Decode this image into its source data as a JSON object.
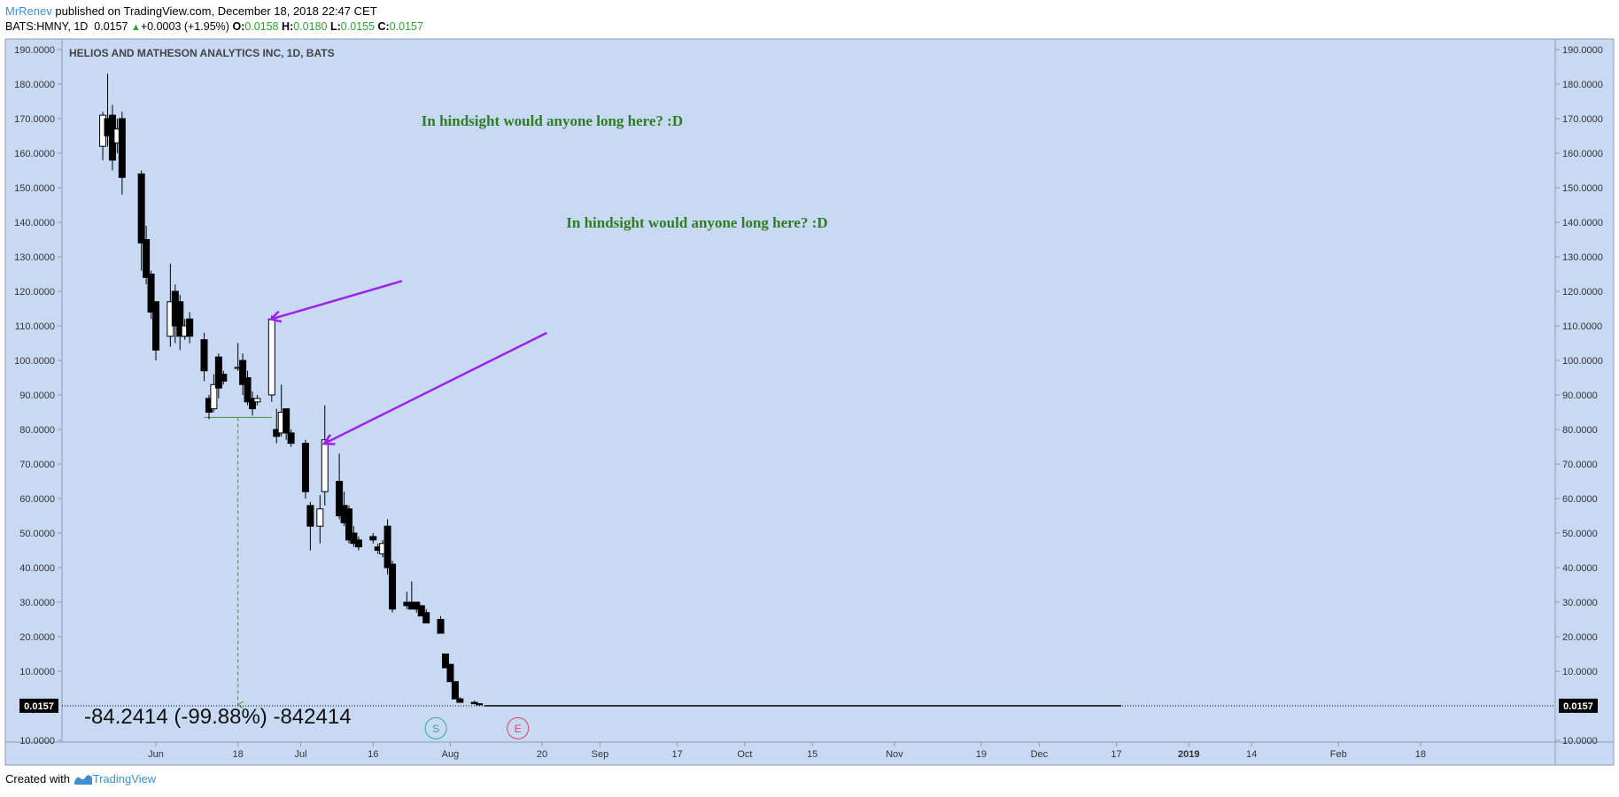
{
  "header": {
    "author": "MrRenev",
    "published": "published on TradingView.com, December 18, 2018 22:47 CET",
    "symbol": "BATS:HMNY, 1D",
    "last": "0.0157",
    "change_arrow": "▲",
    "change": "+0.0003 (+1.95%)",
    "o_label": "O:",
    "o_value": "0.0158",
    "h_label": "H:",
    "h_value": "0.0180",
    "l_label": "L:",
    "l_value": "0.0155",
    "c_label": "C:",
    "c_value": "0.0157"
  },
  "footer": {
    "created_with": "Created with",
    "brand": "TradingView"
  },
  "colors": {
    "plot_bg": "#c8d9f4",
    "up_body": "#ffffff",
    "down_body": "#000000",
    "arrow": "#a020f0",
    "annotation_text": "#2e7d22",
    "accent_green": "#2da335",
    "accent_blue": "#3d8fd1"
  },
  "chart_data": {
    "type": "candlestick",
    "title": "HELIOS AND MATHESON ANALYTICS INC, 1D, BATS",
    "y_ticks": [
      "190.0000",
      "180.0000",
      "170.0000",
      "160.0000",
      "150.0000",
      "140.0000",
      "130.0000",
      "120.0000",
      "110.0000",
      "100.0000",
      "90.0000",
      "80.0000",
      "70.0000",
      "60.0000",
      "50.0000",
      "40.0000",
      "30.0000",
      "20.0000",
      "10.0000",
      "10.0000"
    ],
    "ylim": [
      -10,
      192
    ],
    "x_tick_labels": [
      "Jun",
      "18",
      "Jul",
      "16",
      "Aug",
      "20",
      "Sep",
      "17",
      "Oct",
      "15",
      "Nov",
      "19",
      "Dec",
      "17",
      "2019",
      "14",
      "Feb",
      "18"
    ],
    "x_tick_dates": [
      "2018-06-01",
      "2018-06-18",
      "2018-07-01",
      "2018-07-16",
      "2018-08-01",
      "2018-08-20",
      "2018-09-01",
      "2018-09-17",
      "2018-10-01",
      "2018-10-15",
      "2018-11-01",
      "2018-11-19",
      "2018-12-01",
      "2018-12-17",
      "2019-01-01",
      "2019-01-14",
      "2019-02-01",
      "2019-02-18"
    ],
    "bold_ticks": [
      "2019"
    ],
    "last_price_label": "0.0157",
    "ohlc": [
      {
        "d": "2018-05-21",
        "o": 162,
        "h": 172,
        "l": 158,
        "c": 171
      },
      {
        "d": "2018-05-22",
        "o": 170,
        "h": 183,
        "l": 162,
        "c": 165
      },
      {
        "d": "2018-05-23",
        "o": 171,
        "h": 174,
        "l": 155,
        "c": 158
      },
      {
        "d": "2018-05-24",
        "o": 163,
        "h": 170,
        "l": 160,
        "c": 167
      },
      {
        "d": "2018-05-25",
        "o": 170,
        "h": 172,
        "l": 148,
        "c": 153
      },
      {
        "d": "2018-05-29",
        "o": 154,
        "h": 155,
        "l": 126,
        "c": 134
      },
      {
        "d": "2018-05-30",
        "o": 135,
        "h": 139,
        "l": 122,
        "c": 124
      },
      {
        "d": "2018-05-31",
        "o": 125,
        "h": 126,
        "l": 112,
        "c": 114
      },
      {
        "d": "2018-06-01",
        "o": 117,
        "h": 117,
        "l": 100,
        "c": 103
      },
      {
        "d": "2018-06-04",
        "o": 107,
        "h": 128,
        "l": 104,
        "c": 117
      },
      {
        "d": "2018-06-05",
        "o": 120,
        "h": 122,
        "l": 105,
        "c": 110
      },
      {
        "d": "2018-06-06",
        "o": 117,
        "h": 119,
        "l": 103,
        "c": 107
      },
      {
        "d": "2018-06-07",
        "o": 107,
        "h": 112,
        "l": 106,
        "c": 110
      },
      {
        "d": "2018-06-08",
        "o": 112,
        "h": 114,
        "l": 105,
        "c": 107
      },
      {
        "d": "2018-06-11",
        "o": 106,
        "h": 108,
        "l": 94,
        "c": 97
      },
      {
        "d": "2018-06-12",
        "o": 89,
        "h": 90,
        "l": 83,
        "c": 85
      },
      {
        "d": "2018-06-13",
        "o": 86,
        "h": 96,
        "l": 85,
        "c": 93
      },
      {
        "d": "2018-06-14",
        "o": 101,
        "h": 102,
        "l": 89,
        "c": 92
      },
      {
        "d": "2018-06-15",
        "o": 96,
        "h": 97,
        "l": 93,
        "c": 94
      },
      {
        "d": "2018-06-18",
        "o": 98,
        "h": 105,
        "l": 97,
        "c": 98
      },
      {
        "d": "2018-06-19",
        "o": 100,
        "h": 102,
        "l": 90,
        "c": 93
      },
      {
        "d": "2018-06-20",
        "o": 95,
        "h": 97,
        "l": 87,
        "c": 88
      },
      {
        "d": "2018-06-21",
        "o": 89,
        "h": 91,
        "l": 84,
        "c": 86
      },
      {
        "d": "2018-06-22",
        "o": 88,
        "h": 90,
        "l": 87,
        "c": 89
      },
      {
        "d": "2018-06-25",
        "o": 90,
        "h": 113,
        "l": 88,
        "c": 112
      },
      {
        "d": "2018-06-26",
        "o": 80,
        "h": 86,
        "l": 76,
        "c": 78
      },
      {
        "d": "2018-06-27",
        "o": 79,
        "h": 93,
        "l": 78,
        "c": 85
      },
      {
        "d": "2018-06-28",
        "o": 86,
        "h": 86,
        "l": 77,
        "c": 79
      },
      {
        "d": "2018-06-29",
        "o": 79,
        "h": 80,
        "l": 75,
        "c": 76
      },
      {
        "d": "2018-07-02",
        "o": 76,
        "h": 77,
        "l": 60,
        "c": 62
      },
      {
        "d": "2018-07-03",
        "o": 58,
        "h": 59,
        "l": 45,
        "c": 52
      },
      {
        "d": "2018-07-05",
        "o": 52,
        "h": 61,
        "l": 47,
        "c": 57
      },
      {
        "d": "2018-07-06",
        "o": 62,
        "h": 87,
        "l": 58,
        "c": 77
      },
      {
        "d": "2018-07-09",
        "o": 65,
        "h": 73,
        "l": 54,
        "c": 55
      },
      {
        "d": "2018-07-10",
        "o": 58,
        "h": 62,
        "l": 52,
        "c": 53
      },
      {
        "d": "2018-07-11",
        "o": 57,
        "h": 58,
        "l": 47,
        "c": 48
      },
      {
        "d": "2018-07-12",
        "o": 50,
        "h": 52,
        "l": 46,
        "c": 47
      },
      {
        "d": "2018-07-13",
        "o": 48,
        "h": 49,
        "l": 45,
        "c": 46
      },
      {
        "d": "2018-07-16",
        "o": 49,
        "h": 50,
        "l": 47,
        "c": 48
      },
      {
        "d": "2018-07-17",
        "o": 46,
        "h": 47,
        "l": 44,
        "c": 45
      },
      {
        "d": "2018-07-18",
        "o": 44,
        "h": 48,
        "l": 43,
        "c": 47
      },
      {
        "d": "2018-07-19",
        "o": 52,
        "h": 54,
        "l": 38,
        "c": 40
      },
      {
        "d": "2018-07-20",
        "o": 41,
        "h": 42,
        "l": 27,
        "c": 28
      },
      {
        "d": "2018-07-23",
        "o": 30,
        "h": 33,
        "l": 28,
        "c": 29
      },
      {
        "d": "2018-07-24",
        "o": 30,
        "h": 36,
        "l": 28,
        "c": 28
      },
      {
        "d": "2018-07-25",
        "o": 30,
        "h": 30,
        "l": 27,
        "c": 28
      },
      {
        "d": "2018-07-26",
        "o": 29,
        "h": 29,
        "l": 26,
        "c": 26
      },
      {
        "d": "2018-07-27",
        "o": 27,
        "h": 28,
        "l": 24,
        "c": 24
      },
      {
        "d": "2018-07-30",
        "o": 25,
        "h": 26,
        "l": 21,
        "c": 21
      },
      {
        "d": "2018-07-31",
        "o": 15,
        "h": 15,
        "l": 11,
        "c": 11
      },
      {
        "d": "2018-08-01",
        "o": 12,
        "h": 12,
        "l": 7,
        "c": 7
      },
      {
        "d": "2018-08-02",
        "o": 7,
        "h": 7,
        "l": 2,
        "c": 2
      },
      {
        "d": "2018-08-03",
        "o": 2,
        "h": 2.5,
        "l": 1,
        "c": 1
      },
      {
        "d": "2018-08-06",
        "o": 1,
        "h": 1.5,
        "l": 0.5,
        "c": 0.6
      },
      {
        "d": "2018-08-07",
        "o": 0.6,
        "h": 0.7,
        "l": 0.2,
        "c": 0.3
      }
    ],
    "flat_after": {
      "from": "2018-08-08",
      "to": "2018-12-18",
      "value": 0.0157
    },
    "measure": {
      "text": "-84.2414 (-99.88%) -842414",
      "start_date": "2018-06-18",
      "start_price": 84.25,
      "end_date": "2018-12-18",
      "end_price": 0.0157
    },
    "annotations": [
      {
        "text": "In hindsight would anyone long here? :D",
        "date": "2018-07-26",
        "price": 168
      },
      {
        "text": "In hindsight would anyone long here? :D",
        "date": "2018-08-25",
        "price": 138.5
      }
    ],
    "arrows": [
      {
        "from_date": "2018-07-22",
        "from_price": 123,
        "to_date": "2018-06-25",
        "to_price": 112
      },
      {
        "from_date": "2018-08-21",
        "from_price": 108,
        "to_date": "2018-07-06",
        "to_price": 76
      }
    ],
    "events": [
      {
        "label": "S",
        "date": "2018-07-29",
        "price": -6.5,
        "color": "#3aaa8a"
      },
      {
        "label": "E",
        "date": "2018-08-15",
        "price": -6.5,
        "color": "#d84560"
      }
    ]
  }
}
